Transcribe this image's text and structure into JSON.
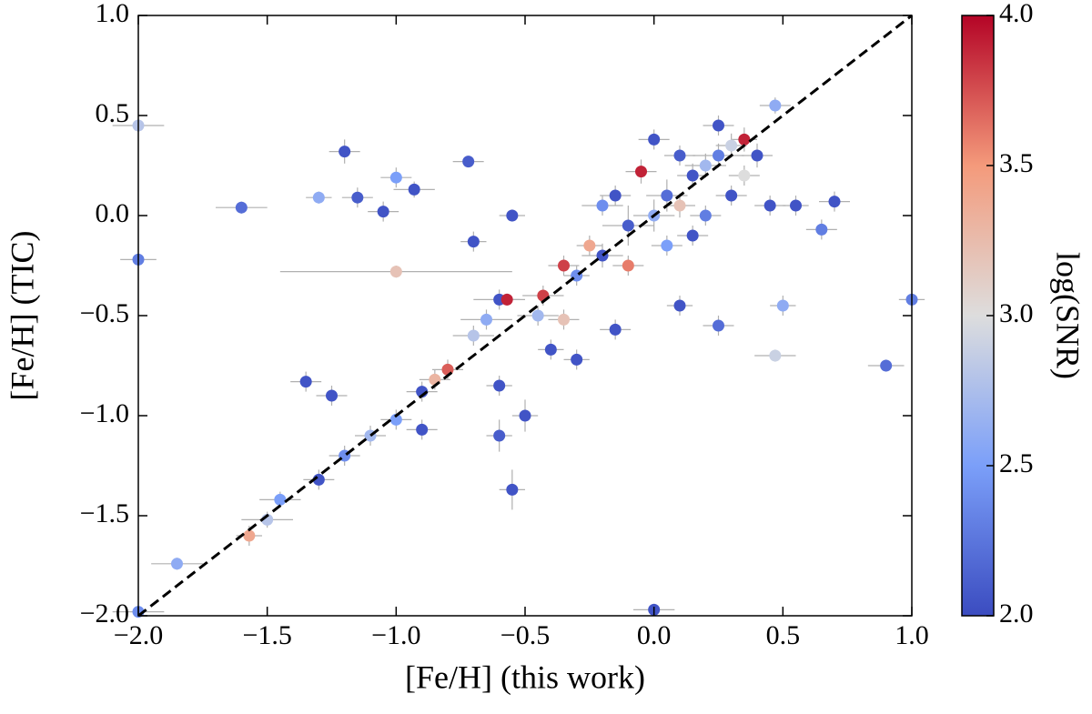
{
  "chart_data": {
    "type": "scatter",
    "xlabel": "[Fe/H] (this work)",
    "ylabel": "[Fe/H] (TIC)",
    "colorbar_label": "log(SNR)",
    "colormap": "coolwarm",
    "clim": [
      2.0,
      4.0
    ],
    "cticks": [
      {
        "value": 2.0,
        "label": "2.0"
      },
      2.5,
      {
        "value": 3.0,
        "label": "3.0"
      },
      3.5,
      {
        "value": 4.0,
        "label": "4.0"
      }
    ],
    "xlim": [
      -2.0,
      1.0
    ],
    "ylim": [
      -2.0,
      1.0
    ],
    "xticks": [
      {
        "value": -2.0,
        "label": "−2.0"
      },
      {
        "value": -1.5,
        "label": "−1.5"
      },
      {
        "value": -1.0,
        "label": "−1.0"
      },
      {
        "value": -0.5,
        "label": "−0.5"
      },
      {
        "value": 0.0,
        "label": "0.0"
      },
      0.5,
      {
        "value": 1.0,
        "label": "1.0"
      }
    ],
    "yticks": [
      {
        "value": -2.0,
        "label": "−2.0"
      },
      {
        "value": -1.5,
        "label": "−1.5"
      },
      {
        "value": -1.0,
        "label": "−1.0"
      },
      {
        "value": -0.5,
        "label": "−0.5"
      },
      {
        "value": 0.0,
        "label": "0.0"
      },
      0.5,
      {
        "value": 1.0,
        "label": "1.0"
      }
    ],
    "reference_line": {
      "x": [
        -2.0,
        1.0
      ],
      "y": [
        -2.0,
        1.0
      ],
      "color": "#000000",
      "style": "dashed"
    },
    "errorbar_color": "#b0b0b0",
    "x": [
      -1.6,
      -1.2,
      -1.15,
      -1.3,
      -1.0,
      -0.93,
      -1.05,
      -0.72,
      -0.55,
      -0.7,
      -1.0,
      -2.0,
      -2.0,
      -0.6,
      -0.57,
      -0.43,
      -0.3,
      -0.2,
      -0.1,
      0.0,
      0.05,
      0.1,
      0.15,
      0.2,
      0.25,
      0.3,
      0.35,
      0.4,
      0.47,
      -0.05,
      -0.25,
      -0.35,
      0.45,
      0.55,
      0.7,
      0.65,
      0.5,
      0.47,
      0.25,
      0.9,
      1.0,
      0.0,
      -0.55,
      -0.6,
      -0.5,
      -0.8,
      -0.85,
      -0.9,
      -1.0,
      -1.1,
      -1.2,
      -1.3,
      -1.35,
      -1.25,
      -1.45,
      -1.5,
      -1.57,
      -1.85,
      -2.0,
      -0.9,
      -0.4,
      -0.3,
      -0.15,
      0.1,
      -0.6,
      -0.65,
      -0.7,
      0.2,
      0.1,
      0.25,
      -0.15,
      0.0,
      -0.1,
      0.05,
      0.3,
      -0.45,
      -0.35,
      0.15,
      -0.2,
      0.35
    ],
    "y": [
      0.04,
      0.32,
      0.09,
      0.09,
      0.19,
      0.13,
      0.02,
      0.27,
      0.0,
      -0.13,
      -0.28,
      -0.22,
      0.45,
      -0.42,
      -0.42,
      -0.4,
      -0.3,
      -0.2,
      -0.05,
      0.0,
      0.1,
      0.05,
      0.2,
      0.25,
      0.3,
      0.35,
      0.38,
      0.3,
      0.55,
      0.22,
      -0.15,
      -0.25,
      0.05,
      0.05,
      0.07,
      -0.07,
      -0.45,
      -0.7,
      -0.55,
      -0.75,
      -0.42,
      -1.97,
      -1.37,
      -1.1,
      -1.0,
      -0.77,
      -0.82,
      -0.88,
      -1.02,
      -1.1,
      -1.2,
      -1.32,
      -0.83,
      -0.9,
      -1.42,
      -1.52,
      -1.6,
      -1.74,
      -1.98,
      -1.07,
      -0.67,
      -0.72,
      -0.57,
      -0.45,
      -0.85,
      -0.52,
      -0.6,
      0.0,
      0.3,
      0.45,
      0.1,
      0.38,
      -0.25,
      -0.15,
      0.1,
      -0.5,
      -0.52,
      -0.1,
      0.05,
      0.2
    ],
    "snr": [
      2.2,
      2.05,
      2.1,
      2.6,
      2.5,
      2.05,
      2.05,
      2.1,
      2.05,
      2.05,
      3.2,
      2.3,
      2.8,
      2.05,
      3.9,
      3.8,
      2.4,
      2.05,
      2.1,
      2.6,
      2.2,
      3.2,
      2.05,
      2.7,
      2.3,
      2.9,
      3.9,
      2.05,
      2.6,
      3.9,
      3.4,
      3.8,
      2.05,
      2.05,
      2.05,
      2.3,
      2.6,
      2.9,
      2.2,
      2.2,
      2.3,
      2.05,
      2.05,
      2.1,
      2.05,
      3.7,
      3.3,
      2.05,
      2.5,
      2.7,
      2.4,
      2.05,
      2.05,
      2.05,
      2.5,
      2.8,
      3.4,
      2.6,
      2.4,
      2.05,
      2.05,
      2.05,
      2.05,
      2.05,
      2.05,
      2.6,
      2.8,
      2.3,
      2.1,
      2.05,
      2.05,
      2.05,
      3.6,
      2.5,
      2.05,
      2.7,
      3.2,
      2.05,
      2.4,
      3.0
    ],
    "xerr": [
      0.1,
      0.06,
      0.06,
      0.05,
      0.06,
      0.08,
      0.06,
      0.06,
      0.05,
      0.05,
      0.45,
      0.07,
      0.1,
      0.1,
      0.05,
      0.08,
      0.05,
      0.08,
      0.1,
      0.08,
      0.08,
      0.06,
      0.06,
      0.08,
      0.1,
      0.06,
      0.05,
      0.06,
      0.06,
      0.06,
      0.05,
      0.06,
      0.06,
      0.05,
      0.06,
      0.06,
      0.05,
      0.08,
      0.06,
      0.07,
      0.05,
      0.08,
      0.05,
      0.05,
      0.05,
      0.06,
      0.06,
      0.06,
      0.06,
      0.06,
      0.06,
      0.06,
      0.06,
      0.06,
      0.08,
      0.1,
      0.05,
      0.1,
      0.1,
      0.06,
      0.05,
      0.05,
      0.06,
      0.05,
      0.05,
      0.1,
      0.08,
      0.06,
      0.06,
      0.06,
      0.06,
      0.06,
      0.06,
      0.06,
      0.06,
      0.08,
      0.06,
      0.06,
      0.08,
      0.06
    ],
    "yerr": [
      0.03,
      0.06,
      0.05,
      0.03,
      0.05,
      0.04,
      0.05,
      0.02,
      0.03,
      0.05,
      0.03,
      0.03,
      0.03,
      0.05,
      0.03,
      0.05,
      0.05,
      0.06,
      0.1,
      0.08,
      0.08,
      0.06,
      0.06,
      0.06,
      0.06,
      0.06,
      0.06,
      0.06,
      0.04,
      0.06,
      0.05,
      0.05,
      0.05,
      0.05,
      0.05,
      0.05,
      0.05,
      0.03,
      0.05,
      0.03,
      0.03,
      0.03,
      0.1,
      0.08,
      0.08,
      0.05,
      0.05,
      0.05,
      0.05,
      0.05,
      0.05,
      0.05,
      0.05,
      0.05,
      0.04,
      0.04,
      0.05,
      0.03,
      0.03,
      0.05,
      0.05,
      0.05,
      0.05,
      0.05,
      0.05,
      0.05,
      0.05,
      0.05,
      0.05,
      0.05,
      0.05,
      0.05,
      0.05,
      0.05,
      0.05,
      0.05,
      0.05,
      0.05,
      0.05,
      0.05
    ]
  }
}
